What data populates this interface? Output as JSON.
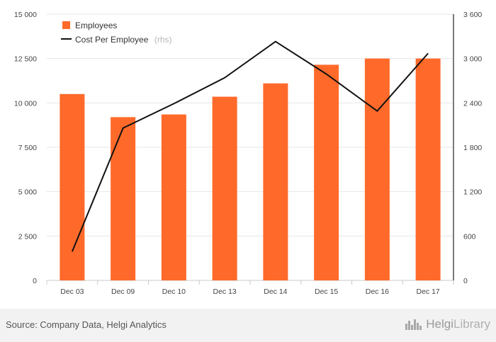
{
  "chart_data": {
    "type": "bar",
    "categories": [
      "Dec 03",
      "Dec 09",
      "Dec 10",
      "Dec 13",
      "Dec 14",
      "Dec 15",
      "Dec 16",
      "Dec 17"
    ],
    "series": [
      {
        "name": "Employees",
        "type": "bar",
        "axis": "left",
        "color": "#ff6a2a",
        "values": [
          10500,
          9200,
          9350,
          10350,
          11100,
          12150,
          12500,
          12500
        ]
      },
      {
        "name": "Cost Per Employee",
        "type": "line",
        "axis": "right",
        "color": "#111111",
        "values": [
          390,
          2060,
          2390,
          2740,
          3230,
          2790,
          2290,
          3070
        ]
      }
    ],
    "legend": {
      "position": "top-left",
      "items": [
        {
          "label": "Employees",
          "suffix": ""
        },
        {
          "label": "Cost Per Employee",
          "suffix": "(rhs)"
        }
      ]
    },
    "y_left": {
      "ylim": [
        0,
        15000
      ],
      "ticks": [
        0,
        2500,
        5000,
        7500,
        10000,
        12500,
        15000
      ],
      "tick_labels": [
        "0",
        "2 500",
        "5 000",
        "7 500",
        "10 000",
        "12 500",
        "15 000"
      ]
    },
    "y_right": {
      "ylim": [
        0,
        3600
      ],
      "ticks": [
        0,
        600,
        1200,
        1800,
        2400,
        3000,
        3600
      ],
      "tick_labels": [
        "0",
        "600",
        "1 200",
        "1 800",
        "2 400",
        "3 000",
        "3 600"
      ]
    },
    "grid": true,
    "grid_axis": "y",
    "xlabel": "",
    "ylabel": ""
  },
  "footer": {
    "source": "Source: Company Data, Helgi Analytics",
    "brand_prefix": "Helgi",
    "brand_suffix": "Library"
  },
  "icons": {
    "brand_logo": "skyline-logo-icon"
  }
}
